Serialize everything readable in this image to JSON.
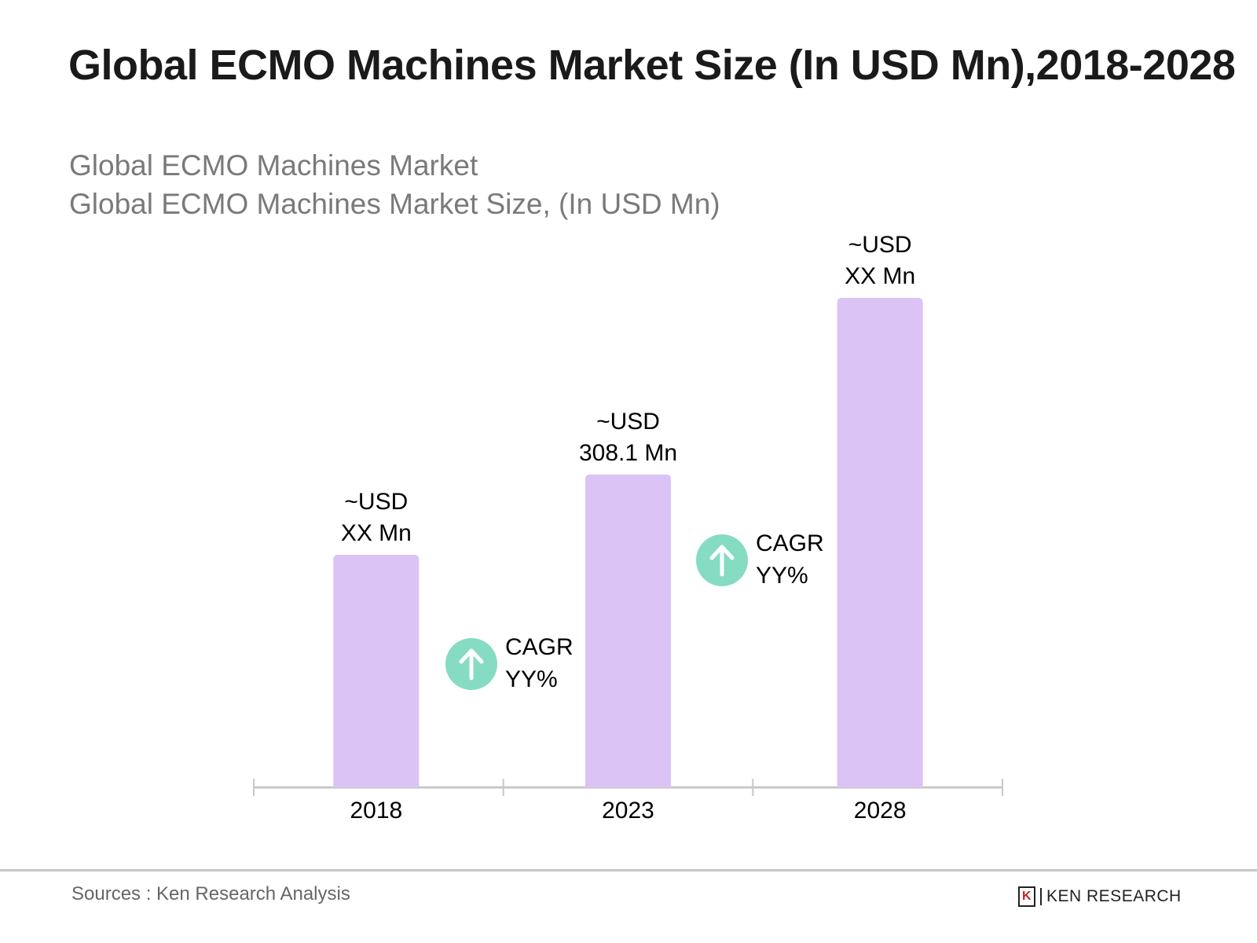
{
  "chart_data": {
    "type": "bar",
    "title": "Global ECMO Machines Market Size (In USD Mn),2018-2028",
    "subtitle_lines": [
      "Global ECMO Machines Market",
      "Global ECMO Machines Market Size, (In USD Mn)"
    ],
    "categories": [
      "2018",
      "2023",
      "2028"
    ],
    "values": [
      229,
      308.1,
      482
    ],
    "data_labels": [
      [
        "~USD",
        "XX Mn"
      ],
      [
        "~USD",
        "308.1 Mn"
      ],
      [
        "~USD",
        "XX Mn"
      ]
    ],
    "annotations": [
      {
        "between": [
          "2018",
          "2023"
        ],
        "lines": [
          "CAGR",
          "YY%"
        ],
        "icon": "arrow-up-circle-icon"
      },
      {
        "between": [
          "2023",
          "2028"
        ],
        "lines": [
          "CAGR",
          "YY%"
        ],
        "icon": "arrow-up-circle-icon"
      }
    ],
    "ylim": [
      0,
      520
    ],
    "grid": false,
    "colors": {
      "bar": "#dcc3f5",
      "cagr_icon": "#85dcc2",
      "axis": "#c8c8c8"
    }
  },
  "footer": {
    "source": "Sources : Ken Research Analysis",
    "logo": "KEN RESEARCH"
  }
}
